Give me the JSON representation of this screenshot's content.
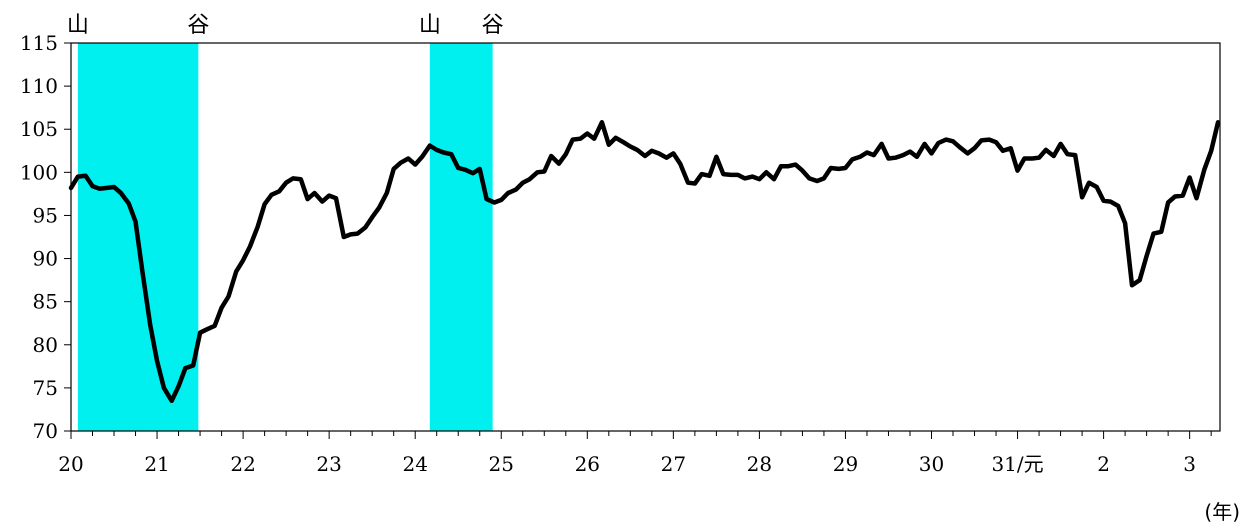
{
  "chart_data": {
    "type": "line",
    "title": "",
    "xlabel": "",
    "ylabel": "",
    "unit_label": "(年)",
    "ylim": [
      70,
      115
    ],
    "y_ticks": [
      "70",
      "75",
      "80",
      "85",
      "90",
      "95",
      "100",
      "105",
      "110",
      "115"
    ],
    "x_tick_labels": [
      "20",
      "21",
      "22",
      "23",
      "24",
      "25",
      "26",
      "27",
      "28",
      "29",
      "30",
      "31/元",
      "2",
      "3"
    ],
    "grid": false,
    "shading_color": "#00F0F0",
    "line_color": "#000000",
    "recessions": [
      {
        "start": 0.08,
        "end": 1.48,
        "peak_label": "山",
        "trough_label": "谷"
      },
      {
        "start": 4.17,
        "end": 4.9,
        "peak_label": "山",
        "trough_label": "谷"
      }
    ],
    "series": [
      {
        "values": [
          [
            0.0,
            98.2
          ],
          [
            0.08,
            99.5
          ],
          [
            0.17,
            99.6
          ],
          [
            0.25,
            98.4
          ],
          [
            0.33,
            98.1
          ],
          [
            0.42,
            98.2
          ],
          [
            0.5,
            98.3
          ],
          [
            0.58,
            97.6
          ],
          [
            0.67,
            96.4
          ],
          [
            0.75,
            94.3
          ],
          [
            0.83,
            88.5
          ],
          [
            0.92,
            82.3
          ],
          [
            1.0,
            78.1
          ],
          [
            1.08,
            75.0
          ],
          [
            1.17,
            73.5
          ],
          [
            1.25,
            75.2
          ],
          [
            1.33,
            77.3
          ],
          [
            1.42,
            77.6
          ],
          [
            1.5,
            81.4
          ],
          [
            1.58,
            81.8
          ],
          [
            1.67,
            82.2
          ],
          [
            1.75,
            84.3
          ],
          [
            1.83,
            85.6
          ],
          [
            1.92,
            88.5
          ],
          [
            2.0,
            89.8
          ],
          [
            2.08,
            91.4
          ],
          [
            2.17,
            93.7
          ],
          [
            2.25,
            96.3
          ],
          [
            2.33,
            97.4
          ],
          [
            2.42,
            97.8
          ],
          [
            2.5,
            98.8
          ],
          [
            2.58,
            99.3
          ],
          [
            2.67,
            99.2
          ],
          [
            2.75,
            96.9
          ],
          [
            2.83,
            97.6
          ],
          [
            2.92,
            96.6
          ],
          [
            3.0,
            97.3
          ],
          [
            3.08,
            97.0
          ],
          [
            3.17,
            92.5
          ],
          [
            3.25,
            92.8
          ],
          [
            3.33,
            92.9
          ],
          [
            3.42,
            93.6
          ],
          [
            3.5,
            94.8
          ],
          [
            3.58,
            95.9
          ],
          [
            3.67,
            97.6
          ],
          [
            3.75,
            100.4
          ],
          [
            3.83,
            101.1
          ],
          [
            3.92,
            101.6
          ],
          [
            4.0,
            100.9
          ],
          [
            4.08,
            101.8
          ],
          [
            4.17,
            103.1
          ],
          [
            4.25,
            102.6
          ],
          [
            4.33,
            102.3
          ],
          [
            4.42,
            102.1
          ],
          [
            4.5,
            100.5
          ],
          [
            4.58,
            100.3
          ],
          [
            4.67,
            99.9
          ],
          [
            4.75,
            100.4
          ],
          [
            4.83,
            96.9
          ],
          [
            4.92,
            96.5
          ],
          [
            5.0,
            96.8
          ],
          [
            5.08,
            97.6
          ],
          [
            5.17,
            98.0
          ],
          [
            5.25,
            98.8
          ],
          [
            5.33,
            99.2
          ],
          [
            5.42,
            100.0
          ],
          [
            5.5,
            100.1
          ],
          [
            5.58,
            101.9
          ],
          [
            5.67,
            101.0
          ],
          [
            5.75,
            102.1
          ],
          [
            5.83,
            103.8
          ],
          [
            5.92,
            103.9
          ],
          [
            6.0,
            104.5
          ],
          [
            6.08,
            103.9
          ],
          [
            6.17,
            105.8
          ],
          [
            6.25,
            103.2
          ],
          [
            6.33,
            104.0
          ],
          [
            6.42,
            103.5
          ],
          [
            6.5,
            103.0
          ],
          [
            6.58,
            102.6
          ],
          [
            6.67,
            101.9
          ],
          [
            6.75,
            102.5
          ],
          [
            6.83,
            102.2
          ],
          [
            6.92,
            101.7
          ],
          [
            7.0,
            102.2
          ],
          [
            7.08,
            101.0
          ],
          [
            7.17,
            98.8
          ],
          [
            7.25,
            98.7
          ],
          [
            7.33,
            99.8
          ],
          [
            7.42,
            99.6
          ],
          [
            7.5,
            101.8
          ],
          [
            7.58,
            99.8
          ],
          [
            7.67,
            99.7
          ],
          [
            7.75,
            99.7
          ],
          [
            7.83,
            99.3
          ],
          [
            7.92,
            99.5
          ],
          [
            8.0,
            99.2
          ],
          [
            8.08,
            100.0
          ],
          [
            8.17,
            99.2
          ],
          [
            8.25,
            100.7
          ],
          [
            8.33,
            100.7
          ],
          [
            8.42,
            100.9
          ],
          [
            8.5,
            100.2
          ],
          [
            8.58,
            99.3
          ],
          [
            8.67,
            99.0
          ],
          [
            8.75,
            99.3
          ],
          [
            8.83,
            100.5
          ],
          [
            8.92,
            100.4
          ],
          [
            9.0,
            100.5
          ],
          [
            9.08,
            101.5
          ],
          [
            9.17,
            101.8
          ],
          [
            9.25,
            102.3
          ],
          [
            9.33,
            102.0
          ],
          [
            9.42,
            103.3
          ],
          [
            9.5,
            101.6
          ],
          [
            9.58,
            101.7
          ],
          [
            9.67,
            102.0
          ],
          [
            9.75,
            102.4
          ],
          [
            9.83,
            101.8
          ],
          [
            9.92,
            103.3
          ],
          [
            10.0,
            102.2
          ],
          [
            10.08,
            103.4
          ],
          [
            10.17,
            103.8
          ],
          [
            10.25,
            103.6
          ],
          [
            10.33,
            102.9
          ],
          [
            10.42,
            102.2
          ],
          [
            10.5,
            102.8
          ],
          [
            10.58,
            103.7
          ],
          [
            10.67,
            103.8
          ],
          [
            10.75,
            103.5
          ],
          [
            10.83,
            102.5
          ],
          [
            10.92,
            102.8
          ],
          [
            11.0,
            100.2
          ],
          [
            11.08,
            101.6
          ],
          [
            11.17,
            101.6
          ],
          [
            11.25,
            101.7
          ],
          [
            11.33,
            102.6
          ],
          [
            11.42,
            101.9
          ],
          [
            11.5,
            103.3
          ],
          [
            11.58,
            102.1
          ],
          [
            11.67,
            102.0
          ],
          [
            11.75,
            97.1
          ],
          [
            11.83,
            98.8
          ],
          [
            11.92,
            98.3
          ],
          [
            12.0,
            96.7
          ],
          [
            12.08,
            96.6
          ],
          [
            12.17,
            96.1
          ],
          [
            12.25,
            94.1
          ],
          [
            12.33,
            86.9
          ],
          [
            12.42,
            87.5
          ],
          [
            12.5,
            90.3
          ],
          [
            12.58,
            92.9
          ],
          [
            12.67,
            93.1
          ],
          [
            12.75,
            96.5
          ],
          [
            12.83,
            97.2
          ],
          [
            12.92,
            97.3
          ],
          [
            13.0,
            99.4
          ],
          [
            13.08,
            97.0
          ],
          [
            13.17,
            100.3
          ],
          [
            13.25,
            102.5
          ],
          [
            13.33,
            105.8
          ]
        ]
      }
    ]
  }
}
